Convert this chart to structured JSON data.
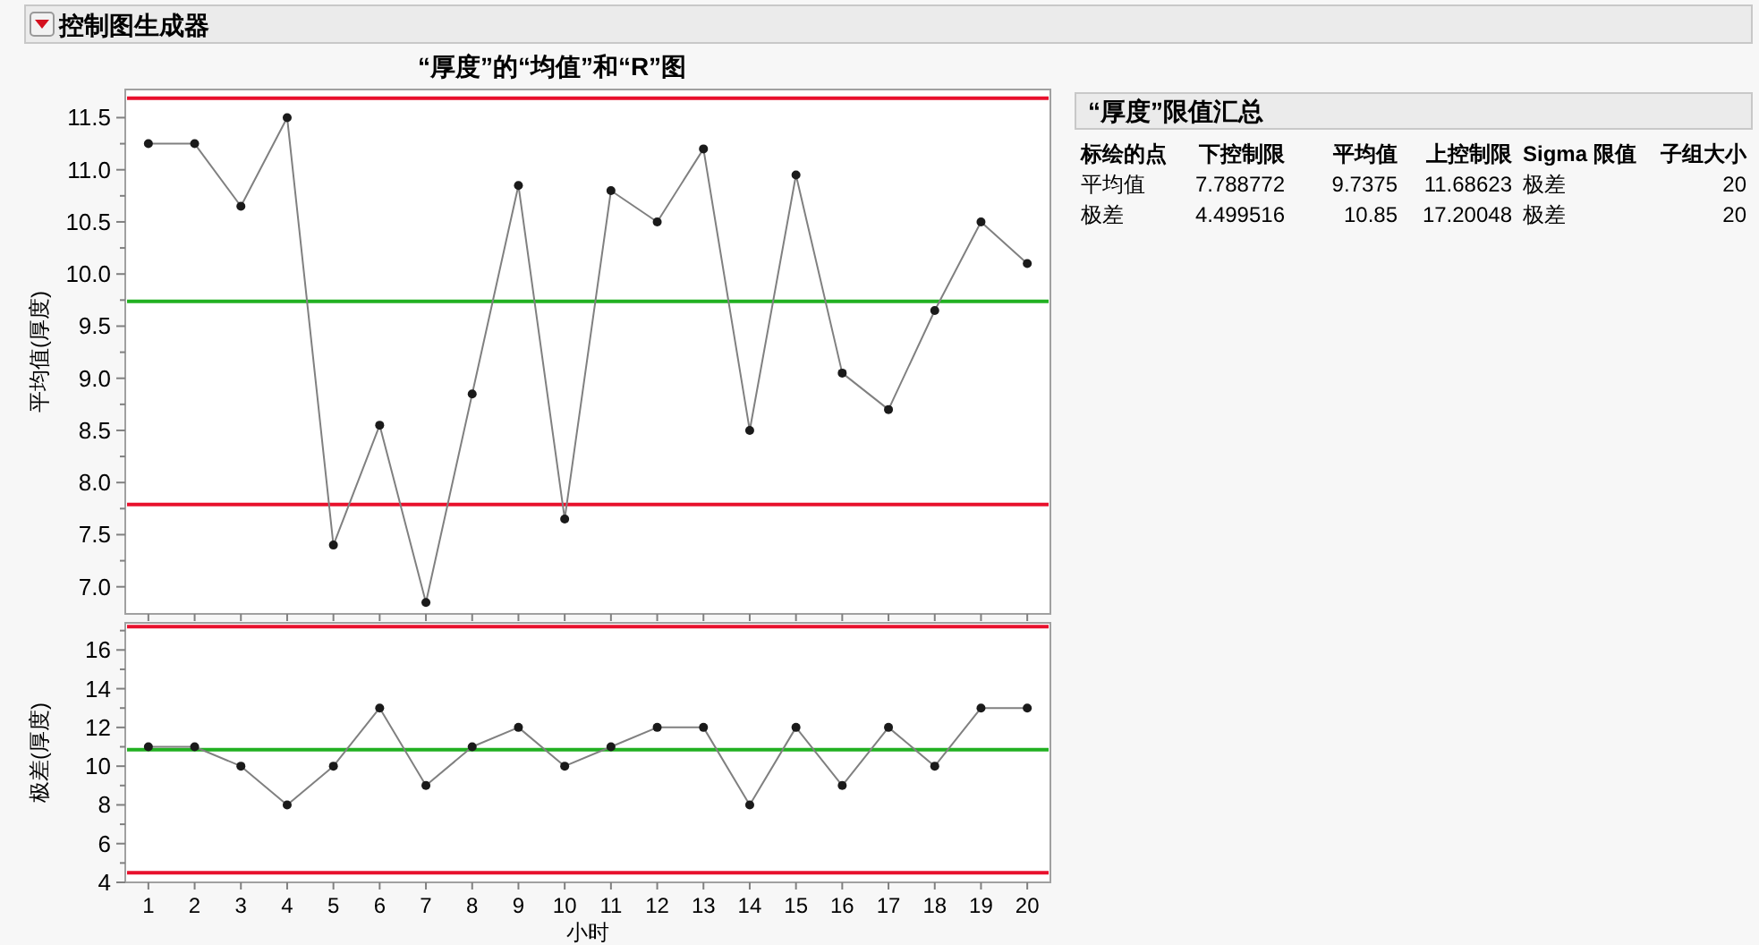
{
  "chart_data": [
    {
      "type": "line",
      "title": "“厚度”的“均值”和“R”图",
      "annotations": [
        "控制图生成器"
      ],
      "ylabel": "平均值(厚度)",
      "categories": [
        null,
        null,
        null,
        null,
        null,
        null,
        null,
        null,
        null,
        null,
        null,
        null,
        null,
        null,
        null,
        null,
        null,
        null,
        null,
        null
      ],
      "series": [
        {
          "color": "#808080",
          "values": [
            11.25,
            11.25,
            10.65,
            11.5,
            7.4,
            8.55,
            6.85,
            8.85,
            10.85,
            7.65,
            10.8,
            10.5,
            11.2,
            8.5,
            10.95,
            9.05,
            8.7,
            9.65,
            10.5,
            10.1
          ]
        }
      ],
      "marker": "circle",
      "tick_labels": "y",
      "ylim": [
        6.74,
        11.77
      ],
      "yticks": [
        {
          "value": 7,
          "label": "7.0"
        },
        {
          "value": 7.25,
          "label": null
        },
        7.5,
        {
          "value": 7.75,
          "label": null
        },
        {
          "value": 8,
          "label": "8.0"
        },
        {
          "value": 8.25,
          "label": null
        },
        8.5,
        {
          "value": 8.75,
          "label": null
        },
        {
          "value": 9,
          "label": "9.0"
        },
        {
          "value": 9.25,
          "label": null
        },
        9.5,
        {
          "value": 9.75,
          "label": null
        },
        {
          "value": 10,
          "label": "10.0"
        },
        {
          "value": 10.25,
          "label": null
        },
        10.5,
        {
          "value": 10.75,
          "label": null
        },
        {
          "value": 11,
          "label": "11.0"
        },
        {
          "value": 11.25,
          "label": null
        },
        11.5
      ],
      "ref_lines": [
        {
          "axis": "y",
          "value": 11.68623,
          "color": "#e8112d"
        },
        {
          "axis": "y",
          "value": 9.7375,
          "color": "#21b021"
        },
        {
          "axis": "y",
          "value": 7.788772,
          "color": "#e8112d"
        }
      ]
    },
    {
      "type": "line",
      "xlabel": "小时",
      "ylabel": "极差(厚度)",
      "categories": [
        "1",
        "2",
        "3",
        "4",
        "5",
        "6",
        "7",
        "8",
        "9",
        "10",
        "11",
        "12",
        "13",
        "14",
        "15",
        "16",
        "17",
        "18",
        "19",
        "20"
      ],
      "series": [
        {
          "color": "#808080",
          "values": [
            11,
            11,
            10,
            8,
            10,
            13,
            9,
            11,
            12,
            10,
            11,
            12,
            12,
            8,
            12,
            9,
            12,
            10,
            13,
            13
          ]
        }
      ],
      "marker": "circle",
      "ylim": [
        4,
        17.4
      ],
      "yticks": [
        4,
        {
          "value": 5,
          "label": null
        },
        6,
        {
          "value": 7,
          "label": null
        },
        8,
        {
          "value": 9,
          "label": null
        },
        10,
        {
          "value": 11,
          "label": null
        },
        12,
        {
          "value": 13,
          "label": null
        },
        14,
        {
          "value": 15,
          "label": null
        },
        16,
        {
          "value": 17,
          "label": null
        }
      ],
      "ref_lines": [
        {
          "axis": "y",
          "value": 17.20048,
          "color": "#e8112d"
        },
        {
          "axis": "y",
          "value": 10.85,
          "color": "#21b021"
        },
        {
          "axis": "y",
          "value": 4.499516,
          "color": "#e8112d"
        }
      ]
    },
    {
      "type": "other",
      "title": "“厚度”限值汇总",
      "categories": [
        "标绘的点",
        "下控制限",
        "平均值",
        "上控制限",
        "Sigma 限值",
        "子组大小"
      ],
      "cell_labels": [
        [
          "平均值",
          "7.788772",
          "9.7375",
          "11.68623",
          "极差",
          "20"
        ],
        [
          "极差",
          "4.499516",
          "10.85",
          "17.20048",
          "极差",
          "20"
        ]
      ]
    }
  ]
}
